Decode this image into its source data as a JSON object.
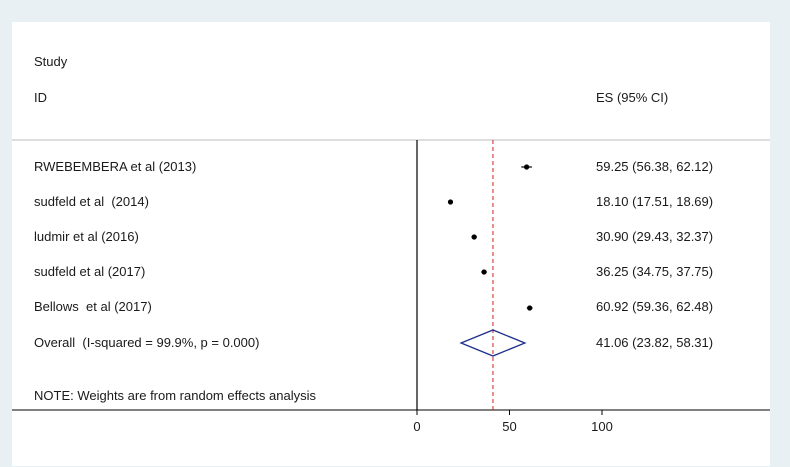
{
  "chart_data": {
    "type": "forest",
    "header": {
      "study": "Study",
      "id": "ID",
      "es": "ES (95% CI)"
    },
    "studies": [
      {
        "label": "RWEBEMBERA et al (2013)",
        "es": 59.25,
        "lo": 56.38,
        "hi": 62.12,
        "es_text": "59.25 (56.38, 62.12)"
      },
      {
        "label": "sudfeld et al  (2014)",
        "es": 18.1,
        "lo": 17.51,
        "hi": 18.69,
        "es_text": "18.10 (17.51, 18.69)"
      },
      {
        "label": "ludmir et al (2016)",
        "es": 30.9,
        "lo": 29.43,
        "hi": 32.37,
        "es_text": "30.90 (29.43, 32.37)"
      },
      {
        "label": "sudfeld et al (2017)",
        "es": 36.25,
        "lo": 34.75,
        "hi": 37.75,
        "es_text": "36.25 (34.75, 37.75)"
      },
      {
        "label": "Bellows  et al (2017)",
        "es": 60.92,
        "lo": 59.36,
        "hi": 62.48,
        "es_text": "60.92 (59.36, 62.48)"
      }
    ],
    "overall": {
      "label": "Overall  (I-squared = 99.9%, p = 0.000)",
      "es": 41.06,
      "lo": 23.82,
      "hi": 58.31,
      "es_text": "41.06 (23.82, 58.31)"
    },
    "note": "NOTE: Weights are from random effects analysis",
    "x_ticks": [
      0,
      50,
      100
    ],
    "x_tick_labels": [
      "0",
      "50",
      "100"
    ],
    "xlim": [
      0,
      100
    ],
    "null_line": 0,
    "colors": {
      "marker": "#000000",
      "diamond": "#1f2f8c",
      "overall_line": "#cc2222",
      "axis": "#000000",
      "separator": "#bdbdbd"
    }
  }
}
